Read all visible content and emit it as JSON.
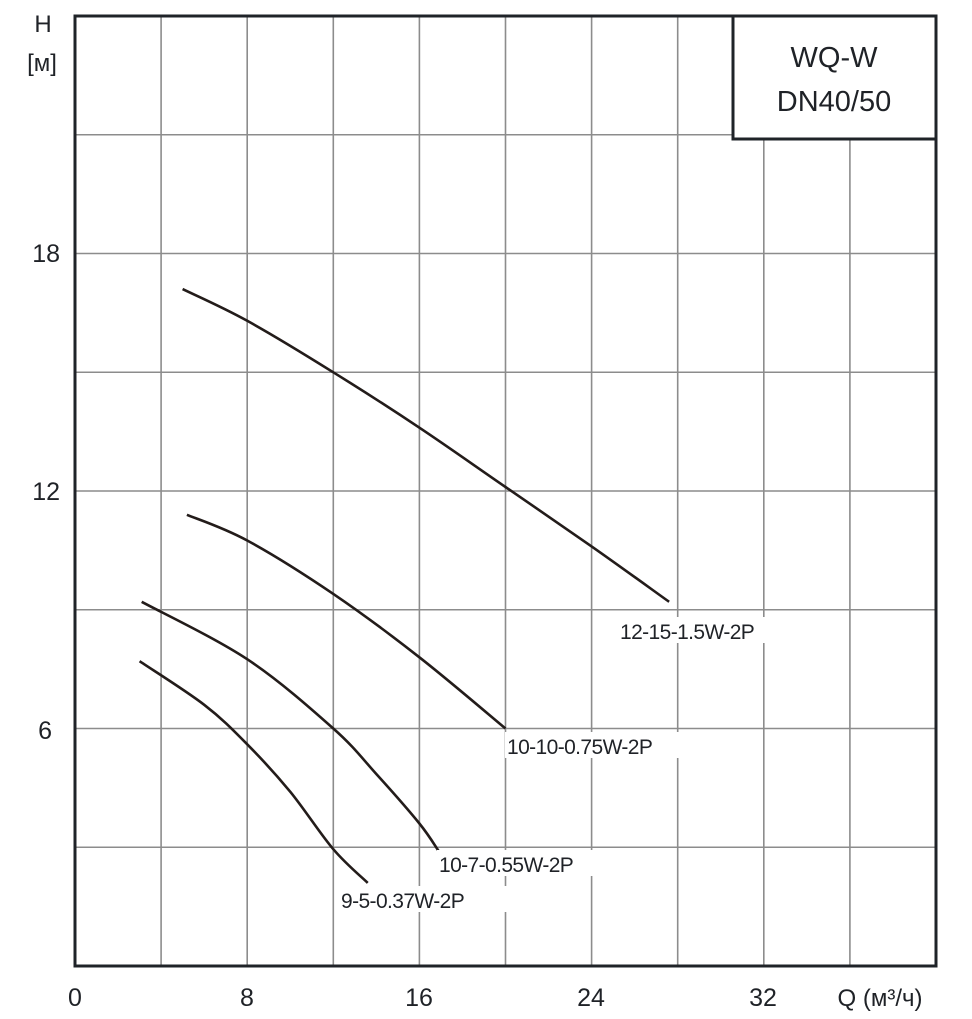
{
  "chart_data": {
    "type": "line",
    "title": "WQ-W DN40/50",
    "title_lines": [
      "WQ-W",
      "DN40/50"
    ],
    "xlabel": "Q (м³/ч)",
    "ylabel": "H [м]",
    "ylabel_lines": [
      "H",
      "[м]"
    ],
    "xlim": [
      0,
      40
    ],
    "ylim": [
      0,
      24
    ],
    "x_ticks": [
      0,
      8,
      16,
      24,
      32
    ],
    "y_ticks": [
      6,
      12,
      18
    ],
    "x_grid_step": 4,
    "y_grid_step": 3,
    "grid": true,
    "legend_position": "inline labels at curve ends",
    "series": [
      {
        "name": "12-15-1.5W-2P",
        "points": [
          [
            5.0,
            17.1
          ],
          [
            8,
            16.3
          ],
          [
            12,
            15.0
          ],
          [
            16,
            13.6
          ],
          [
            20,
            12.1
          ],
          [
            24,
            10.6
          ],
          [
            27.6,
            9.2
          ]
        ]
      },
      {
        "name": "10-10-0.75W-2P",
        "points": [
          [
            5.2,
            11.4
          ],
          [
            8,
            10.75
          ],
          [
            12,
            9.4
          ],
          [
            16,
            7.8
          ],
          [
            20,
            6.0
          ]
        ]
      },
      {
        "name": "10-7-0.55W-2P",
        "points": [
          [
            3.1,
            9.2
          ],
          [
            8,
            7.75
          ],
          [
            12,
            6.0
          ],
          [
            14,
            4.85
          ],
          [
            16,
            3.6
          ],
          [
            16.9,
            2.9
          ]
        ]
      },
      {
        "name": "9-5-0.37W-2P",
        "points": [
          [
            3.0,
            7.7
          ],
          [
            6,
            6.6
          ],
          [
            8,
            5.6
          ],
          [
            10,
            4.4
          ],
          [
            12,
            2.95
          ],
          [
            13.6,
            2.1
          ]
        ]
      }
    ]
  },
  "labels": {
    "x_tick_0": "0",
    "x_tick_8": "8",
    "x_tick_16": "16",
    "x_tick_24": "24",
    "x_tick_32": "32",
    "x_axis_unit": "Q (м³/ч)",
    "y_tick_6": "6",
    "y_tick_12": "12",
    "y_tick_18": "18",
    "y_axis_h": "H",
    "y_axis_unit": "[м]",
    "title_line1": "WQ-W",
    "title_line2": "DN40/50",
    "curve_1": "12-15-1.5W-2P",
    "curve_2": "10-10-0.75W-2P",
    "curve_3": "10-7-0.55W-2P",
    "curve_4": "9-5-0.37W-2P"
  },
  "colors": {
    "background": "#ffffff",
    "grid": "#8c8c8c",
    "frame": "#1f2328",
    "curve": "#231c1a",
    "text": "#1f2227"
  }
}
